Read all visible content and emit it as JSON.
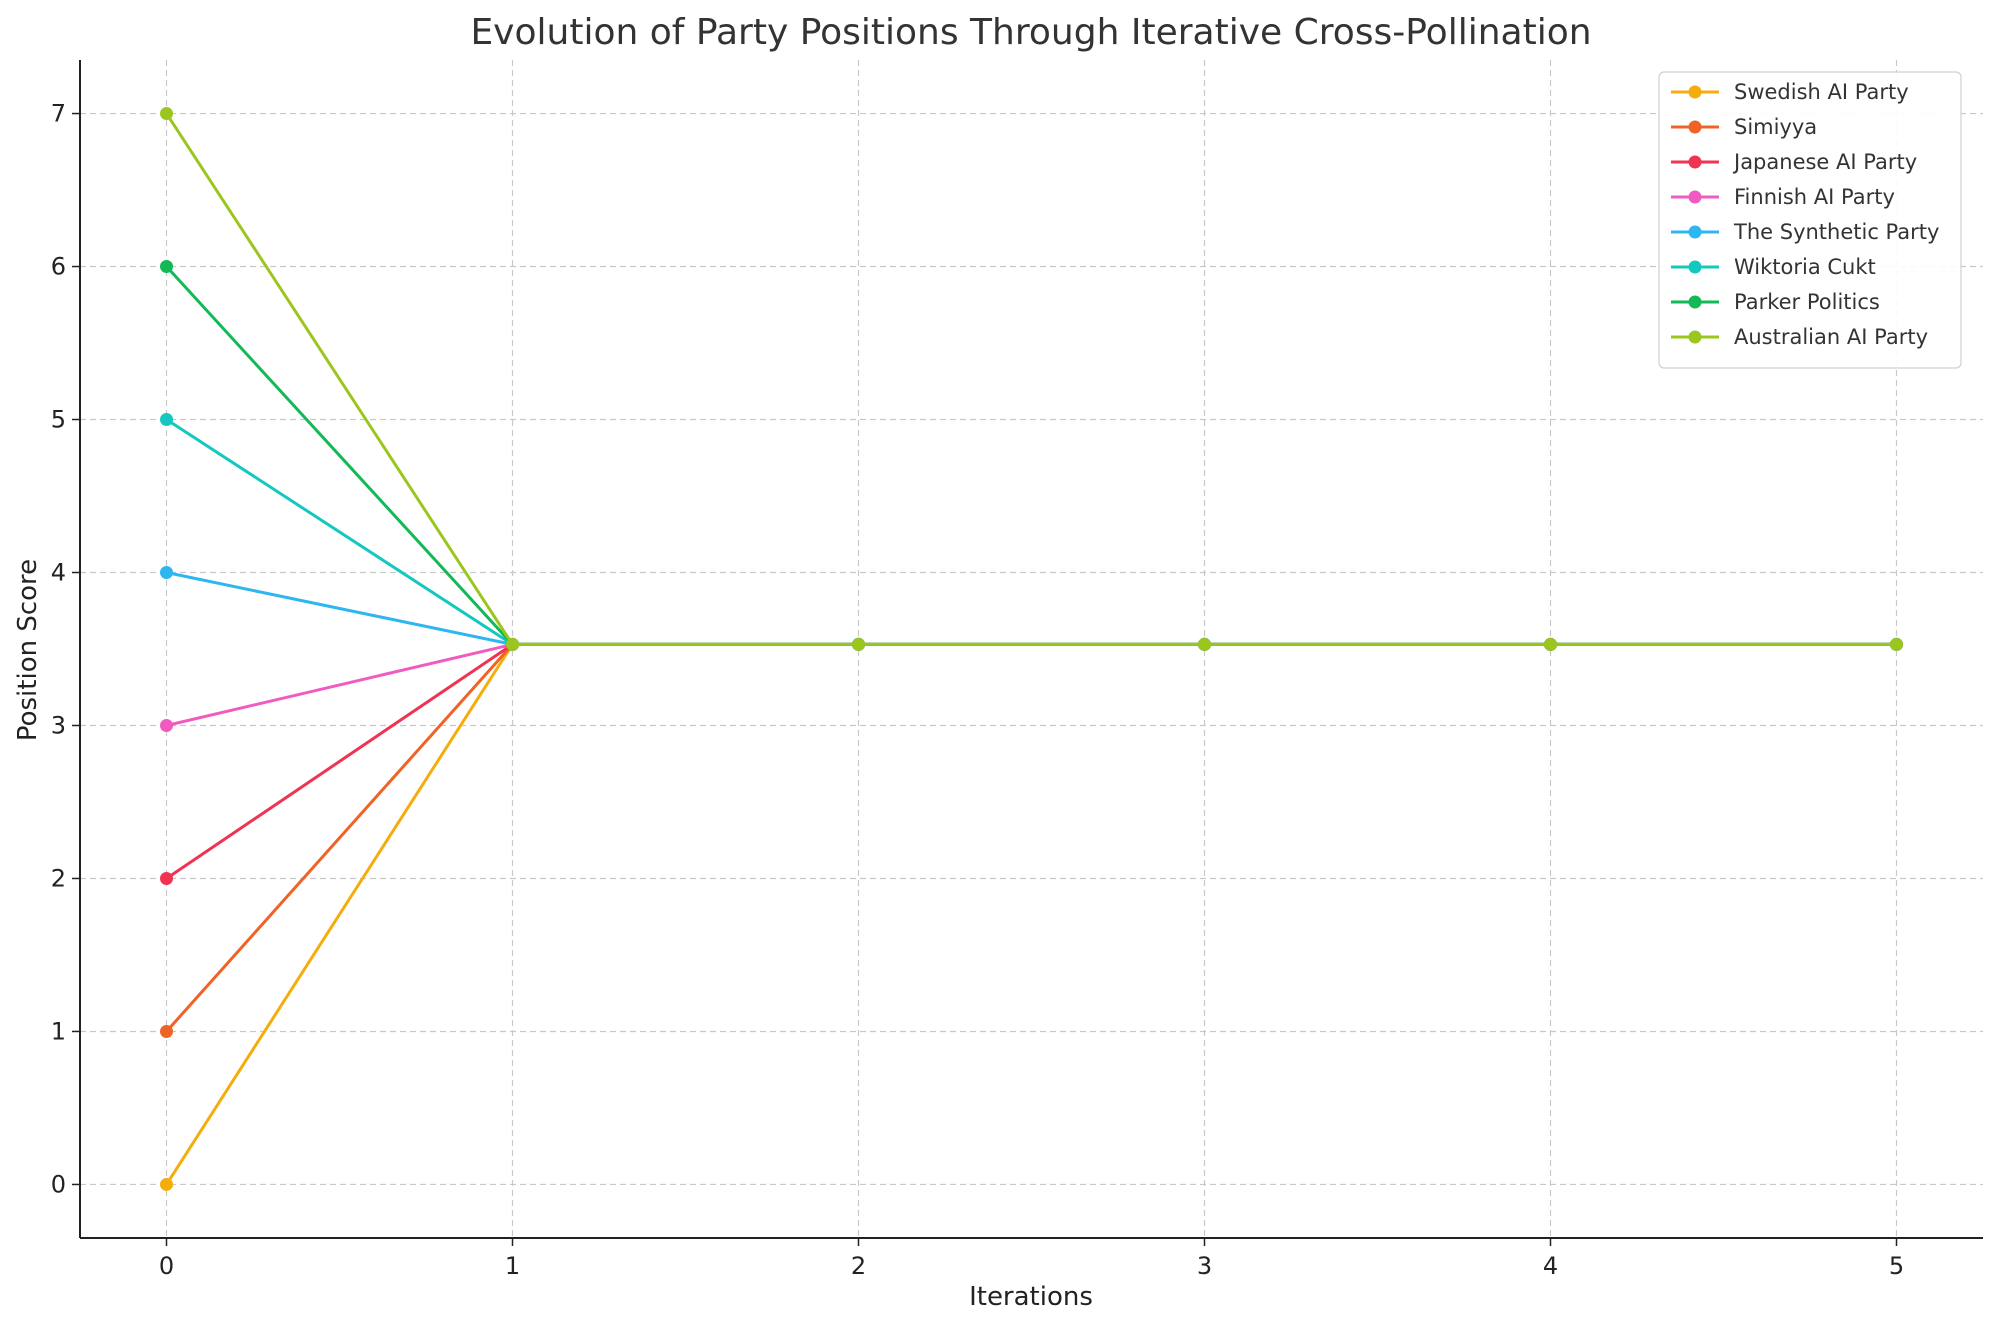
{
  "chart_data": {
    "type": "line",
    "title": "Evolution of Party Positions Through Iterative Cross-Pollination",
    "xlabel": "Iterations",
    "ylabel": "Position Score",
    "x": [
      0,
      1,
      2,
      3,
      4,
      5
    ],
    "xlim": [
      -0.25,
      5.25
    ],
    "ylim": [
      -0.35,
      7.35
    ],
    "xticks": [
      "0",
      "1",
      "2",
      "3",
      "4",
      "5"
    ],
    "yticks": [
      "0",
      "1",
      "2",
      "3",
      "4",
      "5",
      "6",
      "7"
    ],
    "grid": true,
    "legend_position": "top-right",
    "series": [
      {
        "name": "Swedish AI Party",
        "color": "#f5ad0c",
        "values": [
          0,
          3.53,
          3.53,
          3.53,
          3.53,
          3.53
        ]
      },
      {
        "name": "Simiyya",
        "color": "#f06326",
        "values": [
          1,
          3.53,
          3.53,
          3.53,
          3.53,
          3.53
        ]
      },
      {
        "name": "Japanese AI Party",
        "color": "#ef3353",
        "values": [
          2,
          3.53,
          3.53,
          3.53,
          3.53,
          3.53
        ]
      },
      {
        "name": "Finnish AI Party",
        "color": "#f15ac0",
        "values": [
          3,
          3.53,
          3.53,
          3.53,
          3.53,
          3.53
        ]
      },
      {
        "name": "The Synthetic Party",
        "color": "#2db6f0",
        "values": [
          4,
          3.53,
          3.53,
          3.53,
          3.53,
          3.53
        ]
      },
      {
        "name": "Wiktoria Cukt",
        "color": "#14c8c0",
        "values": [
          5,
          3.53,
          3.53,
          3.53,
          3.53,
          3.53
        ]
      },
      {
        "name": "Parker Politics",
        "color": "#13b957",
        "values": [
          6,
          3.53,
          3.53,
          3.53,
          3.53,
          3.53
        ]
      },
      {
        "name": "Australian AI Party",
        "color": "#9cc61f",
        "values": [
          7,
          3.53,
          3.53,
          3.53,
          3.53,
          3.53
        ]
      }
    ]
  }
}
